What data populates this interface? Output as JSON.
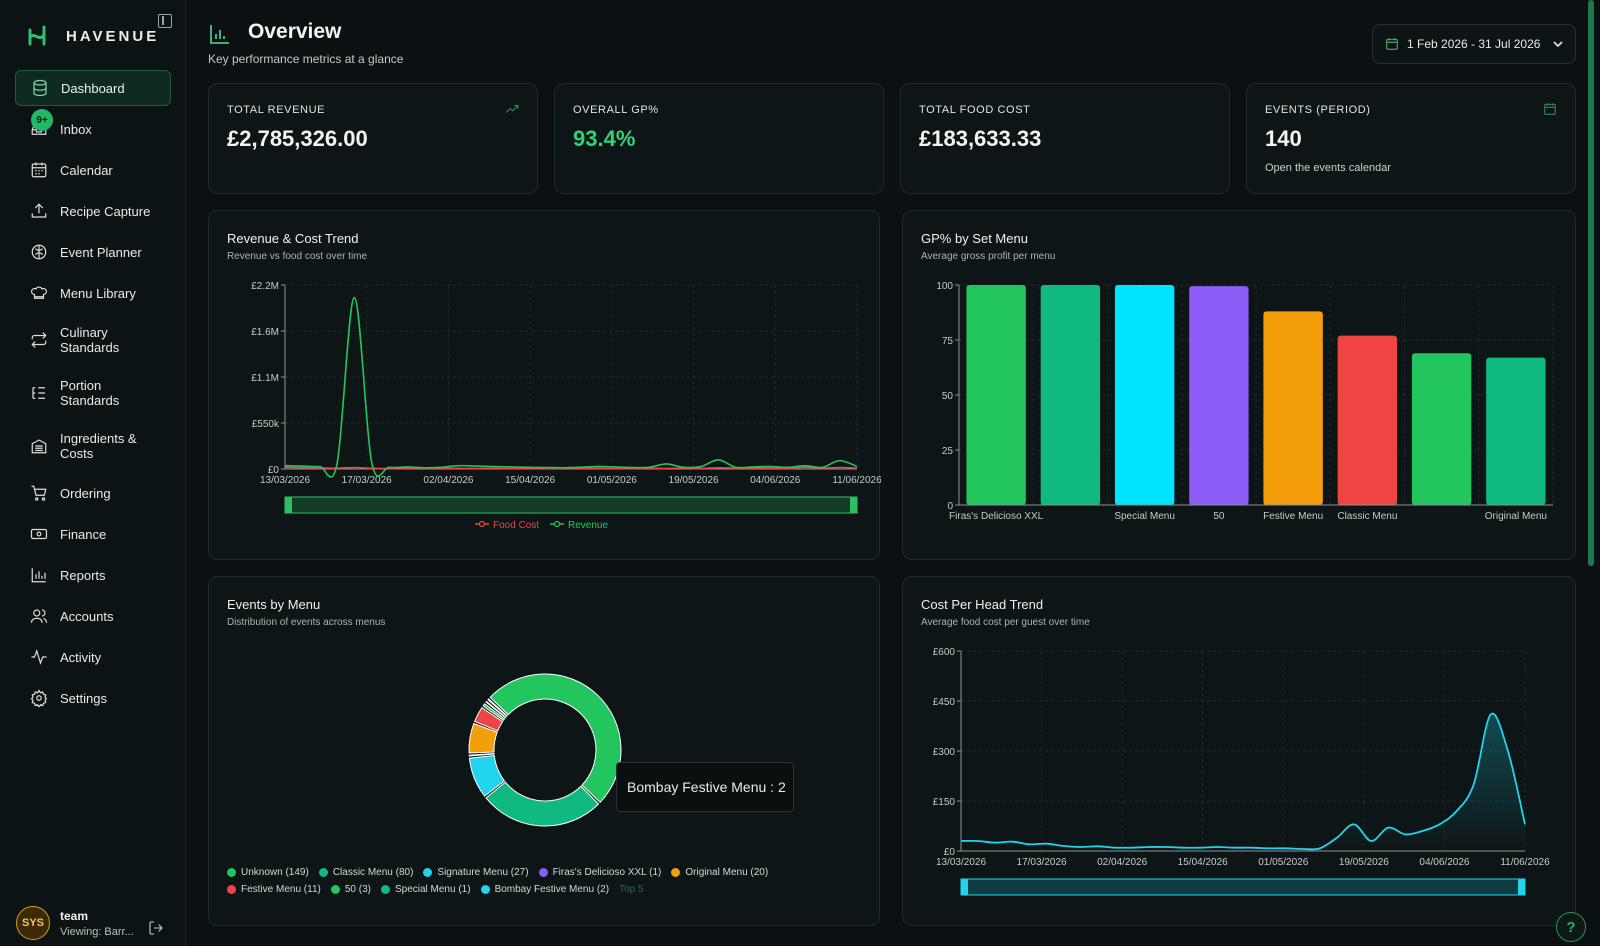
{
  "brand": {
    "name": "HAVENUE"
  },
  "sidebar": {
    "items": [
      {
        "label": "Dashboard",
        "icon": "database-icon"
      },
      {
        "label": "Inbox",
        "icon": "inbox-icon",
        "badge": "9+"
      },
      {
        "label": "Calendar",
        "icon": "calendar-icon"
      },
      {
        "label": "Recipe Capture",
        "icon": "upload-icon"
      },
      {
        "label": "Event Planner",
        "icon": "brain-icon"
      },
      {
        "label": "Menu Library",
        "icon": "chef-hat-icon"
      },
      {
        "label": "Culinary Standards",
        "line1": "Culinary",
        "line2": "Standards",
        "icon": "arrows-repeat-icon"
      },
      {
        "label": "Portion Standards",
        "line1": "Portion",
        "line2": "Standards",
        "icon": "list-icon"
      },
      {
        "label": "Ingredients & Costs",
        "line1": "Ingredients &",
        "line2": "Costs",
        "icon": "warehouse-icon"
      },
      {
        "label": "Ordering",
        "icon": "cart-icon"
      },
      {
        "label": "Finance",
        "icon": "banknote-icon"
      },
      {
        "label": "Reports",
        "icon": "bar-chart-icon"
      },
      {
        "label": "Accounts",
        "icon": "users-icon"
      },
      {
        "label": "Activity",
        "icon": "activity-icon"
      },
      {
        "label": "Settings",
        "icon": "gear-icon"
      }
    ]
  },
  "user": {
    "avatar": "SYS",
    "name": "team",
    "viewing": "Viewing: Barr..."
  },
  "header": {
    "title": "Overview",
    "subtitle": "Key performance metrics at a glance",
    "date_range": "1 Feb 2026 - 31 Jul 2026"
  },
  "kpis": [
    {
      "label": "TOTAL REVENUE",
      "value": "£2,785,326.00",
      "icon": "trending-up-icon"
    },
    {
      "label": "OVERALL GP%",
      "value": "93.4%"
    },
    {
      "label": "TOTAL FOOD COST",
      "value": "£183,633.33"
    },
    {
      "label": "EVENTS (PERIOD)",
      "value": "140",
      "sub": "Open the events calendar",
      "icon": "calendar-icon"
    }
  ],
  "colors": {
    "accent": "#22c55e",
    "food_cost": "#ef4444",
    "revenue": "#22c55e",
    "cost_per_head": "#22d3ee"
  },
  "revenue_chart": {
    "title": "Revenue & Cost Trend",
    "subtitle": "Revenue vs food cost over time",
    "chart_data": {
      "type": "line",
      "y_ticks": [
        "£2.2M",
        "£1.6M",
        "£1.1M",
        "£550k",
        "£0"
      ],
      "ylim": [
        0,
        2200000
      ],
      "x_ticks": [
        "13/03/2026",
        "17/03/2026",
        "02/04/2026",
        "15/04/2026",
        "01/05/2026",
        "19/05/2026",
        "04/06/2026",
        "11/06/2026"
      ],
      "series": [
        {
          "name": "Food Cost",
          "values": [
            20000,
            15000,
            12000,
            10000,
            18000,
            8000,
            6000,
            12000,
            10000,
            9000,
            8000,
            7000,
            9000,
            6000,
            8000,
            7000,
            10000,
            9000,
            8000,
            6000,
            7000,
            10000,
            6000,
            12000,
            8000,
            15000,
            10000,
            9000,
            11000,
            8000,
            20000,
            12000,
            18000,
            10000
          ]
        },
        {
          "name": "Revenue",
          "values": [
            40000,
            35000,
            30000,
            60000,
            2050000,
            80000,
            20000,
            25000,
            15000,
            20000,
            40000,
            35000,
            30000,
            25000,
            20000,
            18000,
            15000,
            20000,
            30000,
            25000,
            18000,
            20000,
            60000,
            20000,
            30000,
            110000,
            20000,
            25000,
            30000,
            20000,
            40000,
            20000,
            100000,
            30000
          ]
        }
      ]
    }
  },
  "gp_chart": {
    "title": "GP% by Set Menu",
    "subtitle": "Average gross profit per menu",
    "chart_data": {
      "type": "bar",
      "categories": [
        "Firas's Delicioso XXL",
        "",
        "Special Menu",
        "50",
        "Festive Menu",
        "Classic Menu",
        "",
        "Original Menu"
      ],
      "values": [
        100,
        100,
        100,
        99.5,
        88,
        77,
        69,
        67
      ],
      "colors": [
        "#22c55e",
        "#10b981",
        "#00e5ff",
        "#8b5cf6",
        "#f59e0b",
        "#ef4444",
        "#22c55e",
        "#10b981"
      ],
      "y_ticks": [
        "100",
        "75",
        "50",
        "25",
        "0"
      ],
      "ylim": [
        0,
        100
      ]
    }
  },
  "events_chart": {
    "title": "Events by Menu",
    "subtitle": "Distribution of events across menus",
    "tooltip": "Bombay Festive Menu : 2",
    "more": "Top 5",
    "chart_data": {
      "type": "pie",
      "slices": [
        {
          "name": "Unknown (149)",
          "value": 149,
          "color": "#22c55e"
        },
        {
          "name": "Classic Menu (80)",
          "value": 80,
          "color": "#10b981"
        },
        {
          "name": "Signature Menu (27)",
          "value": 27,
          "color": "#22d3ee"
        },
        {
          "name": "Firas's Delicioso XXL (1)",
          "value": 1,
          "color": "#8b5cf6"
        },
        {
          "name": "Original Menu (20)",
          "value": 20,
          "color": "#f59e0b"
        },
        {
          "name": "Festive Menu (11)",
          "value": 11,
          "color": "#ef4444"
        },
        {
          "name": "50 (3)",
          "value": 3,
          "color": "#22c55e"
        },
        {
          "name": "Special Menu (1)",
          "value": 1,
          "color": "#10b981"
        },
        {
          "name": "Bombay Festive Menu (2)",
          "value": 2,
          "color": "#22d3ee"
        }
      ]
    }
  },
  "cph_chart": {
    "title": "Cost Per Head Trend",
    "subtitle": "Average food cost per guest over time",
    "chart_data": {
      "type": "area",
      "y_ticks": [
        "£600",
        "£450",
        "£300",
        "£150",
        "£0"
      ],
      "ylim": [
        0,
        600
      ],
      "x_ticks": [
        "13/03/2026",
        "17/03/2026",
        "02/04/2026",
        "15/04/2026",
        "01/05/2026",
        "19/05/2026",
        "04/06/2026",
        "11/06/2026"
      ],
      "values": [
        30,
        30,
        25,
        28,
        20,
        22,
        15,
        12,
        14,
        10,
        10,
        12,
        12,
        10,
        10,
        12,
        10,
        10,
        8,
        8,
        6,
        8,
        40,
        80,
        30,
        70,
        50,
        60,
        80,
        120,
        200,
        410,
        300,
        80
      ]
    }
  }
}
